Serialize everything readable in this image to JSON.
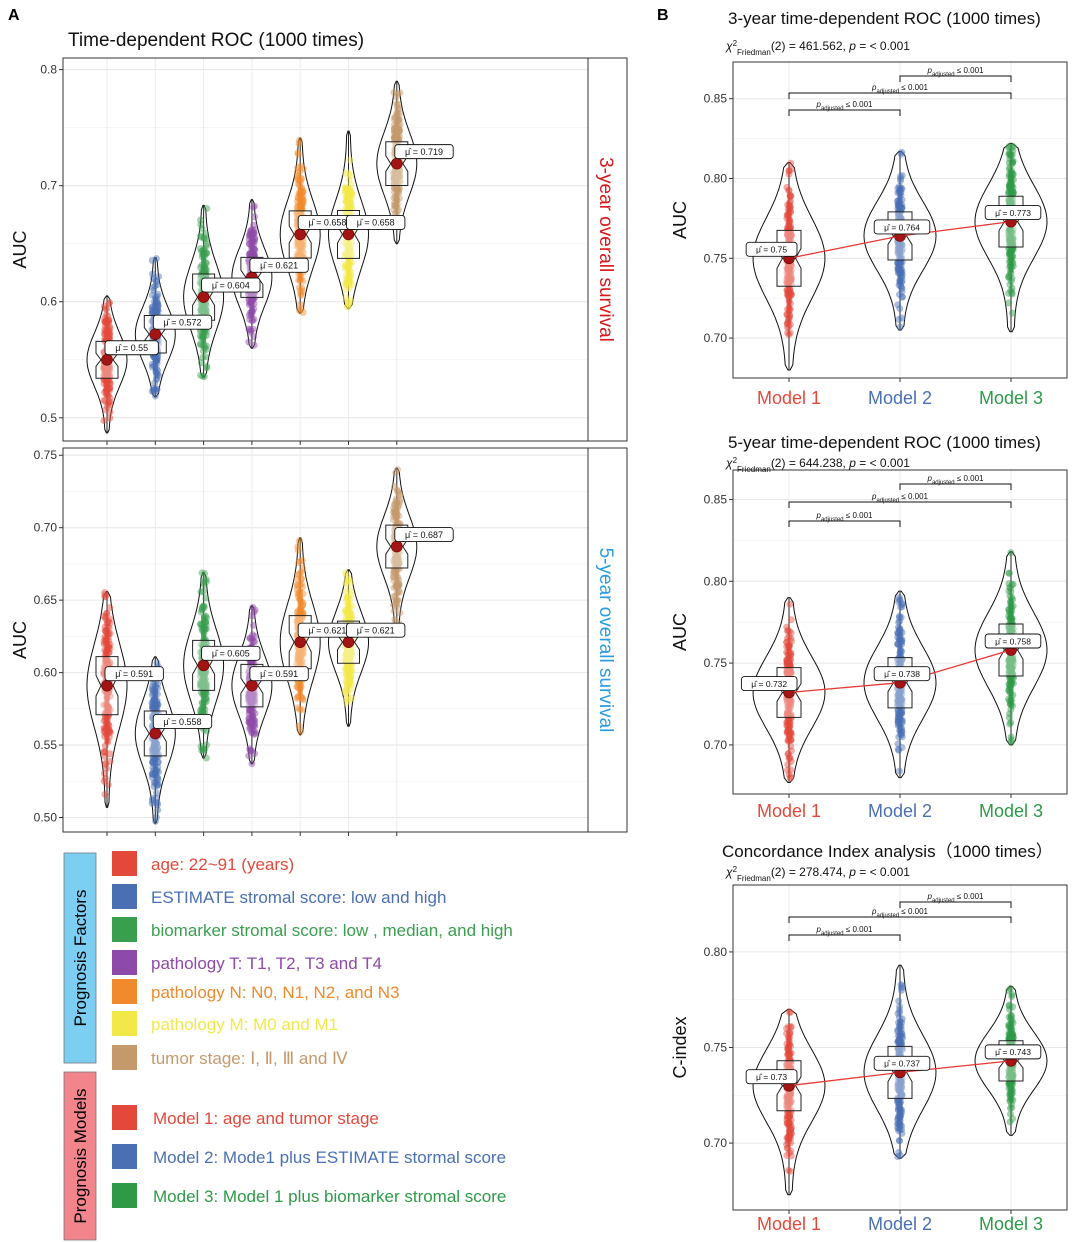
{
  "panel_labels": {
    "a": "A",
    "b": "B"
  },
  "colors": {
    "age": "#e3493b",
    "estimate": "#4a6fb3",
    "biomarker": "#3a9e4f",
    "pathT": "#8e4aa8",
    "pathN": "#f08a2c",
    "pathM": "#f2e84a",
    "stage": "#c49a6c",
    "model1": "#e3493b",
    "model2": "#4a6fb3",
    "model3": "#2e9a48",
    "mean_point": "#a31515",
    "trend_line": "#e53935",
    "facet_label_3yr": "#d7191c",
    "facet_label_5yr": "#2b9be0",
    "legend_box_factors": "#7ccff2",
    "legend_box_models": "#f2848c"
  },
  "legend": {
    "factors_title": "Prognosis Factors",
    "models_title": "Prognosis Models",
    "factor_items": [
      {
        "label": "age: 22~91 (years)",
        "color_key": "age"
      },
      {
        "label": "ESTIMATE stromal score: low and high",
        "color_key": "estimate"
      },
      {
        "label": "biomarker stromal score: low , median, and high",
        "color_key": "biomarker"
      },
      {
        "label": "pathology T: T1, T2, T3 and T4",
        "color_key": "pathT"
      },
      {
        "label": "pathology N: N0, N1, N2, and N3",
        "color_key": "pathN"
      },
      {
        "label": "pathology M: M0 and M1",
        "color_key": "pathM"
      },
      {
        "label": "tumor stage: Ⅰ, Ⅱ, Ⅲ and Ⅳ",
        "color_key": "stage"
      }
    ],
    "model_items": [
      {
        "label": "Model 1: age and tumor stage",
        "color_key": "model1"
      },
      {
        "label": "Model 2: Mode1 plus ESTIMATE stormal score",
        "color_key": "model2"
      },
      {
        "label": "Model 3: Model 1 plus biomarker stromal score",
        "color_key": "model3"
      }
    ]
  },
  "chart_data": [
    {
      "id": "A1",
      "type": "violin",
      "title": "Time-dependent ROC (1000 times)",
      "ylabel": "AUC",
      "facet_label": "3-year overall survival",
      "ylim": [
        0.48,
        0.81
      ],
      "yticks": [
        0.5,
        0.6,
        0.7,
        0.8
      ],
      "tick_labels": [
        "0.5",
        "0.6",
        "0.7",
        "0.8"
      ],
      "groups": [
        {
          "color_key": "age",
          "mean": 0.55,
          "min": 0.487,
          "max": 0.605,
          "label": "μ̂ = 0.55"
        },
        {
          "color_key": "estimate",
          "mean": 0.572,
          "min": 0.518,
          "max": 0.638,
          "label": "μ̂ = 0.572"
        },
        {
          "color_key": "biomarker",
          "mean": 0.604,
          "min": 0.535,
          "max": 0.683,
          "label": "μ̂ = 0.604"
        },
        {
          "color_key": "pathT",
          "mean": 0.621,
          "min": 0.56,
          "max": 0.688,
          "label": "μ̂ = 0.621"
        },
        {
          "color_key": "pathN",
          "mean": 0.658,
          "min": 0.59,
          "max": 0.741,
          "label": "μ̂ = 0.658"
        },
        {
          "color_key": "pathM",
          "mean": 0.658,
          "min": 0.594,
          "max": 0.747,
          "label": "μ̂ = 0.658"
        },
        {
          "color_key": "stage",
          "mean": 0.719,
          "min": 0.65,
          "max": 0.79,
          "label": "μ̂ = 0.719"
        }
      ]
    },
    {
      "id": "A2",
      "type": "violin",
      "title": "",
      "ylabel": "AUC",
      "facet_label": "5-year overall survival",
      "ylim": [
        0.49,
        0.755
      ],
      "yticks": [
        0.5,
        0.55,
        0.6,
        0.65,
        0.7,
        0.75
      ],
      "tick_labels": [
        "0.50",
        "0.55",
        "0.60",
        "0.65",
        "0.70",
        "0.75"
      ],
      "groups": [
        {
          "color_key": "age",
          "mean": 0.591,
          "min": 0.507,
          "max": 0.656,
          "label": "μ̂ = 0.591"
        },
        {
          "color_key": "estimate",
          "mean": 0.558,
          "min": 0.496,
          "max": 0.611,
          "label": "μ̂ = 0.558"
        },
        {
          "color_key": "biomarker",
          "mean": 0.605,
          "min": 0.541,
          "max": 0.669,
          "label": "μ̂ = 0.605"
        },
        {
          "color_key": "pathT",
          "mean": 0.591,
          "min": 0.537,
          "max": 0.646,
          "label": "μ̂ = 0.591"
        },
        {
          "color_key": "pathN",
          "mean": 0.621,
          "min": 0.557,
          "max": 0.693,
          "label": "μ̂ = 0.621"
        },
        {
          "color_key": "pathM",
          "mean": 0.621,
          "min": 0.563,
          "max": 0.671,
          "label": "μ̂ = 0.621"
        },
        {
          "color_key": "stage",
          "mean": 0.687,
          "min": 0.631,
          "max": 0.741,
          "label": "μ̂ = 0.687"
        }
      ]
    },
    {
      "id": "B1",
      "type": "violin",
      "title": "3-year time-dependent ROC (1000 times)",
      "stat_prefix": "χ",
      "stat_sup": "2",
      "stat_sub": "Friedman",
      "stat_rest": "(2) = 461.562, ",
      "stat_p": "p",
      "stat_end": " = < 0.001",
      "ylabel": "AUC",
      "ylim": [
        0.675,
        0.873
      ],
      "yticks": [
        0.7,
        0.75,
        0.8,
        0.85
      ],
      "tick_labels": [
        "0.70",
        "0.75",
        "0.80",
        "0.85"
      ],
      "categories": [
        "Model 1",
        "Model 2",
        "Model 3"
      ],
      "groups": [
        {
          "color_key": "model1",
          "mean": 0.75,
          "min": 0.68,
          "max": 0.81,
          "label": "μ̂ = 0.75"
        },
        {
          "color_key": "model2",
          "mean": 0.764,
          "min": 0.705,
          "max": 0.817,
          "label": "μ̂ = 0.764"
        },
        {
          "color_key": "model3",
          "mean": 0.773,
          "min": 0.704,
          "max": 0.822,
          "label": "μ̂ = 0.773"
        }
      ],
      "brackets": [
        {
          "from": 0,
          "to": 1,
          "level": 0,
          "label": "p",
          "sub": "adjusted",
          "rest": " ≤ 0.001"
        },
        {
          "from": 0,
          "to": 2,
          "level": 1,
          "label": "p",
          "sub": "adjusted",
          "rest": " ≤ 0.001"
        },
        {
          "from": 1,
          "to": 2,
          "level": 2,
          "label": "p",
          "sub": "adjusted",
          "rest": " ≤ 0.001"
        }
      ]
    },
    {
      "id": "B2",
      "type": "violin",
      "title": "5-year time-dependent ROC (1000 times)",
      "stat_prefix": "χ",
      "stat_sup": "2",
      "stat_sub": "Friedman",
      "stat_rest": "(2) = 644.238, ",
      "stat_p": "p",
      "stat_end": " = < 0.001",
      "ylabel": "AUC",
      "ylim": [
        0.67,
        0.868
      ],
      "yticks": [
        0.7,
        0.75,
        0.8,
        0.85
      ],
      "tick_labels": [
        "0.70",
        "0.75",
        "0.80",
        "0.85"
      ],
      "categories": [
        "Model 1",
        "Model 2",
        "Model 3"
      ],
      "groups": [
        {
          "color_key": "model1",
          "mean": 0.732,
          "min": 0.677,
          "max": 0.79,
          "label": "μ̂ = 0.732"
        },
        {
          "color_key": "model2",
          "mean": 0.738,
          "min": 0.68,
          "max": 0.794,
          "label": "μ̂ = 0.738"
        },
        {
          "color_key": "model3",
          "mean": 0.758,
          "min": 0.7,
          "max": 0.818,
          "label": "μ̂ = 0.758"
        }
      ],
      "brackets": [
        {
          "from": 0,
          "to": 1,
          "level": 0,
          "label": "p",
          "sub": "adjusted",
          "rest": " ≤ 0.001"
        },
        {
          "from": 0,
          "to": 2,
          "level": 1,
          "label": "p",
          "sub": "adjusted",
          "rest": " ≤ 0.001"
        },
        {
          "from": 1,
          "to": 2,
          "level": 2,
          "label": "p",
          "sub": "adjusted",
          "rest": " ≤ 0.001"
        }
      ]
    },
    {
      "id": "B3",
      "type": "violin",
      "title": "Concordance Index analysis（1000 times）",
      "stat_prefix": "χ",
      "stat_sup": "2",
      "stat_sub": "Friedman",
      "stat_rest": "(2) = 278.474, ",
      "stat_p": "p",
      "stat_end": " = < 0.001",
      "ylabel": "C-index",
      "ylim": [
        0.665,
        0.835
      ],
      "yticks": [
        0.7,
        0.75,
        0.8
      ],
      "tick_labels": [
        "0.70",
        "0.75",
        "0.80"
      ],
      "categories": [
        "Model 1",
        "Model 2",
        "Model 3"
      ],
      "groups": [
        {
          "color_key": "model1",
          "mean": 0.73,
          "min": 0.673,
          "max": 0.77,
          "label": "μ̂ = 0.73"
        },
        {
          "color_key": "model2",
          "mean": 0.737,
          "min": 0.692,
          "max": 0.793,
          "label": "μ̂ = 0.737"
        },
        {
          "color_key": "model3",
          "mean": 0.743,
          "min": 0.704,
          "max": 0.782,
          "label": "μ̂ = 0.743"
        }
      ],
      "brackets": [
        {
          "from": 0,
          "to": 1,
          "level": 0,
          "label": "p",
          "sub": "adjusted",
          "rest": " ≤ 0.001"
        },
        {
          "from": 0,
          "to": 2,
          "level": 1,
          "label": "p",
          "sub": "adjusted",
          "rest": " ≤ 0.001"
        },
        {
          "from": 1,
          "to": 2,
          "level": 2,
          "label": "p",
          "sub": "adjusted",
          "rest": " ≤ 0.001"
        }
      ]
    }
  ]
}
